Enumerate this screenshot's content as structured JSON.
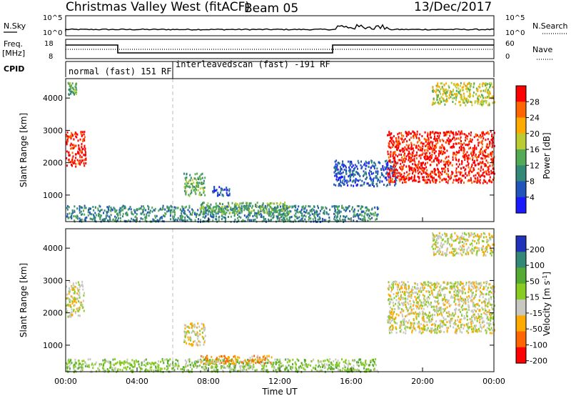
{
  "header": {
    "title": "Christmas Valley West (fitACF)",
    "beam": "Beam 05",
    "date": "13/Dec/2017"
  },
  "top_labels": {
    "nsky": "N.Sky",
    "nsearch": "N.Search",
    "freq_line1": "Freq.",
    "freq_line2": "[MHz]",
    "nave": "Nave",
    "cpid": "CPID",
    "nsky_ticks": [
      "10^5",
      "10^0"
    ],
    "nsearch_ticks": [
      "10^5",
      "10^0"
    ],
    "freq_ticks": [
      "18",
      "8"
    ],
    "nave_ticks": [
      "60",
      "0"
    ]
  },
  "cpid_segments": [
    {
      "label": "normal (fast) 151 RF",
      "start_hour": 0,
      "end_hour": 6
    },
    {
      "label": "interleavedscan (fast) -191 RF",
      "start_hour": 6,
      "end_hour": 24
    }
  ],
  "chart_data": [
    {
      "type": "heatmap",
      "name": "power",
      "ylabel": "Slant Range [km]",
      "xlabel": "Time UT",
      "x_ticks": [
        "00:00",
        "04:00",
        "08:00",
        "12:00",
        "16:00",
        "20:00",
        "00:00"
      ],
      "y_ticks": [
        1000,
        2000,
        3000,
        4000
      ],
      "xlim": [
        0,
        24
      ],
      "ylim": [
        180,
        4600
      ],
      "colorbar": {
        "label": "Power [dB]",
        "ticks": [
          4,
          8,
          12,
          16,
          20,
          24,
          28
        ],
        "range": [
          0,
          32
        ],
        "colors": [
          "#1a1aff",
          "#2255bb",
          "#338877",
          "#55aa55",
          "#bbcc33",
          "#ffaa00",
          "#ff6600",
          "#ff0000"
        ]
      },
      "regions": [
        {
          "t0": 0.0,
          "t1": 1.1,
          "r0": 1900,
          "r1": 3000,
          "level": 7
        },
        {
          "t0": 0.1,
          "t1": 0.6,
          "r0": 4100,
          "r1": 4500,
          "level": 3
        },
        {
          "t0": 6.6,
          "t1": 7.8,
          "r0": 1000,
          "r1": 1700,
          "level": 3
        },
        {
          "t0": 8.2,
          "t1": 9.2,
          "r0": 1000,
          "r1": 1300,
          "level": 1
        },
        {
          "t0": 0.0,
          "t1": 17.5,
          "r0": 200,
          "r1": 700,
          "level": 2
        },
        {
          "t0": 7.5,
          "t1": 12.5,
          "r0": 450,
          "r1": 800,
          "level": 3
        },
        {
          "t0": 15.0,
          "t1": 18.5,
          "r0": 1300,
          "r1": 2100,
          "level": 1
        },
        {
          "t0": 18.0,
          "t1": 24.0,
          "r0": 1400,
          "r1": 3000,
          "level": 7
        },
        {
          "t0": 20.5,
          "t1": 24.0,
          "r0": 3800,
          "r1": 4500,
          "level": 4
        }
      ]
    },
    {
      "type": "heatmap",
      "name": "velocity",
      "ylabel": "Slant Range [km]",
      "xlabel": "Time UT",
      "x_ticks": [
        "00:00",
        "04:00",
        "08:00",
        "12:00",
        "16:00",
        "20:00",
        "00:00"
      ],
      "y_ticks": [
        1000,
        2000,
        3000,
        4000
      ],
      "xlim": [
        0,
        24
      ],
      "ylim": [
        180,
        4600
      ],
      "colorbar": {
        "label": "Velocity [m s^-1]",
        "ticks": [
          "200",
          "100",
          "50",
          "15",
          "-15",
          "-50",
          "-100",
          "-200"
        ],
        "colors": [
          "#2233bb",
          "#338877",
          "#55aa33",
          "#88cc22",
          "#c8c8c0",
          "#ffaa00",
          "#ff6600",
          "#ff0000"
        ]
      },
      "regions": [
        {
          "t0": 0.0,
          "t1": 1.0,
          "r0": 1900,
          "r1": 3000,
          "level": 4
        },
        {
          "t0": 6.6,
          "t1": 7.8,
          "r0": 1000,
          "r1": 1700,
          "level": 4
        },
        {
          "t0": 0.0,
          "t1": 17.5,
          "r0": 200,
          "r1": 600,
          "level": 3
        },
        {
          "t0": 7.5,
          "t1": 11.5,
          "r0": 450,
          "r1": 700,
          "level": 5
        },
        {
          "t0": 18.0,
          "t1": 24.0,
          "r0": 1400,
          "r1": 3000,
          "level": 4
        },
        {
          "t0": 20.5,
          "t1": 24.0,
          "r0": 3800,
          "r1": 4500,
          "level": 4
        }
      ]
    }
  ]
}
